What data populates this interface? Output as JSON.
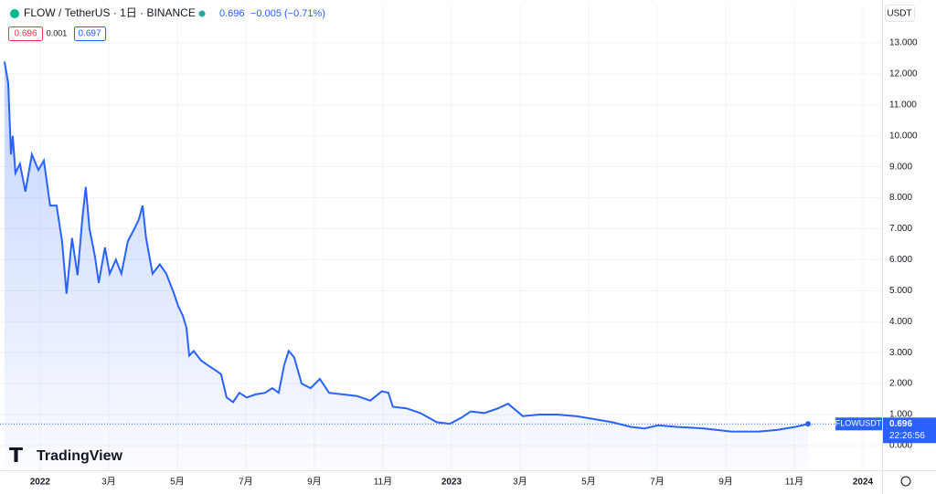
{
  "chart_data": {
    "type": "area",
    "header": {
      "symbol": "FLOW / TetherUS · 1日 · BINANCE",
      "price": "0.696",
      "change": "−0.005 (−0.71%)",
      "bid": "0.696",
      "spread": "0.001",
      "ask": "0.697"
    },
    "currency": "USDT",
    "price_tag": "FLOWUSDT",
    "countdown": "22:26:56",
    "brand": "TradingView",
    "x": [
      -1.04,
      -0.93,
      -0.85,
      -0.8,
      -0.72,
      -0.59,
      -0.43,
      -0.24,
      -0.05,
      0.11,
      0.29,
      0.48,
      0.64,
      0.77,
      0.93,
      1.09,
      1.23,
      1.33,
      1.44,
      1.6,
      1.71,
      1.89,
      2.03,
      2.21,
      2.37,
      2.56,
      2.75,
      2.88,
      2.99,
      3.09,
      3.28,
      3.49,
      3.68,
      3.89,
      4.03,
      4.16,
      4.27,
      4.35,
      4.48,
      4.69,
      4.88,
      5.09,
      5.28,
      5.44,
      5.63,
      5.81,
      6.03,
      6.29,
      6.56,
      6.77,
      6.96,
      7.12,
      7.25,
      7.41,
      7.63,
      7.89,
      8.16,
      8.43,
      8.83,
      9.23,
      9.63,
      9.97,
      10.16,
      10.29,
      10.69,
      11.09,
      11.57,
      11.95,
      12.29,
      12.56,
      12.96,
      13.36,
      13.65,
      14.08,
      14.56,
      15.09,
      15.63,
      16.16,
      16.69,
      17.23,
      17.63,
      18.03,
      18.56,
      19.36,
      20.16,
      20.96,
      21.49,
      22.03,
      22.4
    ],
    "series": [
      {
        "name": "FLOWUSDT",
        "color": "#2962ff",
        "values": [
          12.4,
          11.7,
          9.4,
          10.0,
          8.8,
          9.1,
          8.2,
          9.4,
          8.9,
          9.2,
          7.75,
          7.75,
          6.6,
          4.9,
          6.7,
          5.5,
          7.3,
          8.35,
          7.0,
          6.1,
          5.25,
          6.4,
          5.55,
          6.0,
          5.55,
          6.6,
          7.0,
          7.3,
          7.75,
          6.7,
          5.55,
          5.85,
          5.55,
          4.95,
          4.5,
          4.2,
          3.8,
          2.9,
          3.05,
          2.75,
          2.6,
          2.45,
          2.3,
          1.55,
          1.4,
          1.7,
          1.55,
          1.65,
          1.7,
          1.85,
          1.7,
          2.6,
          3.05,
          2.85,
          2.0,
          1.85,
          2.15,
          1.7,
          1.65,
          1.6,
          1.45,
          1.75,
          1.7,
          1.25,
          1.2,
          1.05,
          0.75,
          0.7,
          0.9,
          1.1,
          1.05,
          1.2,
          1.35,
          0.95,
          1.0,
          1.0,
          0.95,
          0.85,
          0.75,
          0.6,
          0.55,
          0.65,
          0.6,
          0.55,
          0.45,
          0.45,
          0.5,
          0.6,
          0.696
        ]
      }
    ],
    "xlim": [
      -1.17,
      24.56
    ],
    "xticks": [
      {
        "value": 0,
        "label": "2022"
      },
      {
        "value": 2,
        "label": "3月"
      },
      {
        "value": 4,
        "label": "5月"
      },
      {
        "value": 6,
        "label": "7月"
      },
      {
        "value": 8,
        "label": "9月"
      },
      {
        "value": 10,
        "label": "11月"
      },
      {
        "value": 12,
        "label": "2023"
      },
      {
        "value": 14,
        "label": "3月"
      },
      {
        "value": 16,
        "label": "5月"
      },
      {
        "value": 18,
        "label": "7月"
      },
      {
        "value": 20,
        "label": "9月"
      },
      {
        "value": 22,
        "label": "11月"
      },
      {
        "value": 24,
        "label": "2024"
      }
    ],
    "ylim": [
      -0.8,
      14.24
    ],
    "yticks": [
      {
        "value": 0,
        "label": "0.000"
      },
      {
        "value": 1,
        "label": "1.000"
      },
      {
        "value": 2,
        "label": "2.000"
      },
      {
        "value": 3,
        "label": "3.000"
      },
      {
        "value": 4,
        "label": "4.000"
      },
      {
        "value": 5,
        "label": "5.000"
      },
      {
        "value": 6,
        "label": "6.000"
      },
      {
        "value": 7,
        "label": "7.000"
      },
      {
        "value": 8,
        "label": "8.000"
      },
      {
        "value": 9,
        "label": "9.000"
      },
      {
        "value": 10,
        "label": "10.000"
      },
      {
        "value": 11,
        "label": "11.000"
      },
      {
        "value": 12,
        "label": "12.000"
      },
      {
        "value": 13,
        "label": "13.000"
      }
    ],
    "grid": true
  }
}
